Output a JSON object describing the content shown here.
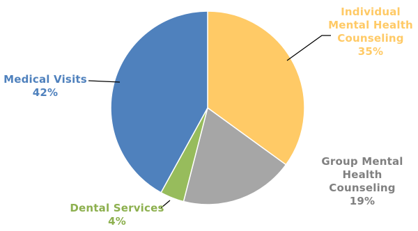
{
  "chart_data": {
    "type": "pie",
    "title": "",
    "slices": [
      {
        "label": "Individual Mental Health Counseling",
        "label_lines": [
          "Individual",
          "Mental Health",
          "Counseling"
        ],
        "value": 35,
        "value_label": "35%",
        "color": "#FFCA66"
      },
      {
        "label": "Group Mental Health Counseling",
        "label_lines": [
          "Group Mental",
          "Health",
          "Counseling"
        ],
        "value": 19,
        "value_label": "19%",
        "color": "#A6A6A6"
      },
      {
        "label": "Dental Services",
        "label_lines": [
          "Dental Services"
        ],
        "value": 4,
        "value_label": "4%",
        "color": "#97BC5C"
      },
      {
        "label": "Medical Visits",
        "label_lines": [
          "Medical Visits"
        ],
        "value": 42,
        "value_label": "42%",
        "color": "#4F81BD"
      }
    ],
    "start_angle": "12 o'clock",
    "direction": "clockwise",
    "legend": "none (labels beside slices)"
  }
}
